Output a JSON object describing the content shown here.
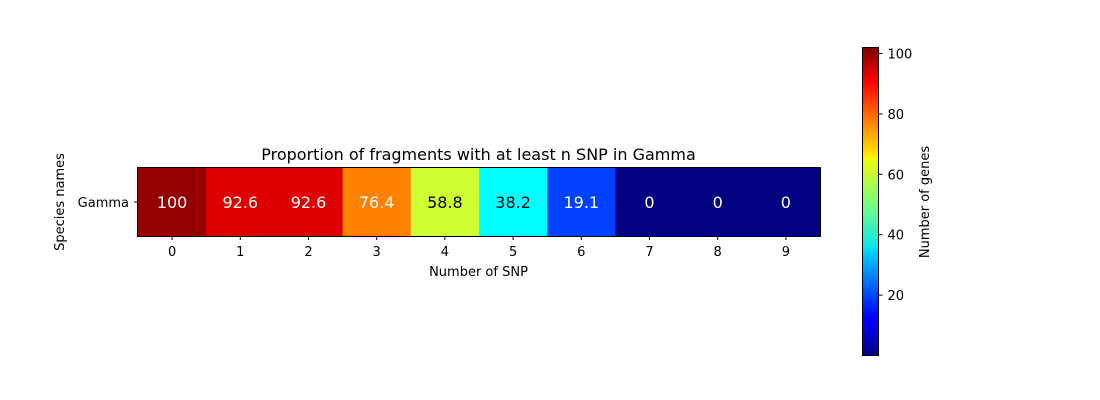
{
  "chart_data": {
    "type": "heatmap",
    "title": "Proportion of fragments with at least n SNP in Gamma",
    "xlabel": "Number of SNP",
    "ylabel": "Species names",
    "x_categories": [
      "0",
      "1",
      "2",
      "3",
      "4",
      "5",
      "6",
      "7",
      "8",
      "9"
    ],
    "y_categories": [
      "Gamma"
    ],
    "values": [
      [
        100,
        92.6,
        92.6,
        76.4,
        58.8,
        38.2,
        19.1,
        0,
        0,
        0
      ]
    ],
    "cell_labels": [
      [
        "100",
        "92.6",
        "92.6",
        "76.4",
        "58.8",
        "38.2",
        "19.1",
        "0",
        "0",
        "0"
      ]
    ],
    "colormap": "jet",
    "color_range": [
      0,
      102
    ],
    "colorbar": {
      "label": "Number of genes",
      "ticks": [
        20,
        40,
        60,
        80,
        100
      ],
      "tick_labels": [
        "20",
        "40",
        "60",
        "80",
        "100"
      ]
    },
    "grid": false
  }
}
